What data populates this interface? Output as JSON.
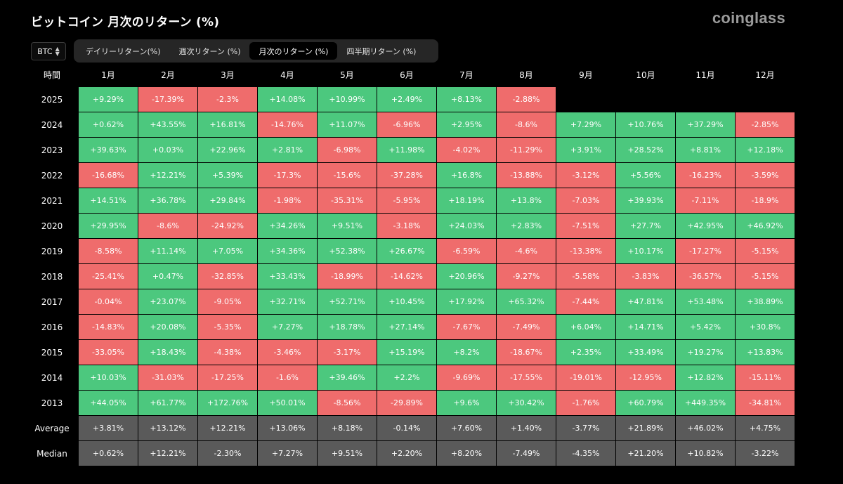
{
  "page_title": "ビットコイン 月次のリターン (%)",
  "brand": "coinglass",
  "asset_select": {
    "value": "BTC"
  },
  "tabs": [
    {
      "label": "デイリーリターン(%)",
      "active": false
    },
    {
      "label": "週次リターン (%)",
      "active": false
    },
    {
      "label": "月次のリターン (%)",
      "active": true
    },
    {
      "label": "四半期リターン (%)",
      "active": false
    }
  ],
  "colors": {
    "positive": "#4cc87e",
    "negative": "#ef6c6c",
    "stat": "#5a5a5a"
  },
  "table": {
    "corner_label": "時間",
    "months": [
      "1月",
      "2月",
      "3月",
      "4月",
      "5月",
      "6月",
      "7月",
      "8月",
      "9月",
      "10月",
      "11月",
      "12月"
    ],
    "rows": [
      {
        "year": "2025",
        "values": [
          "+9.29%",
          "-17.39%",
          "-2.3%",
          "+14.08%",
          "+10.99%",
          "+2.49%",
          "+8.13%",
          "-2.88%",
          "",
          "",
          "",
          ""
        ]
      },
      {
        "year": "2024",
        "values": [
          "+0.62%",
          "+43.55%",
          "+16.81%",
          "-14.76%",
          "+11.07%",
          "-6.96%",
          "+2.95%",
          "-8.6%",
          "+7.29%",
          "+10.76%",
          "+37.29%",
          "-2.85%"
        ]
      },
      {
        "year": "2023",
        "values": [
          "+39.63%",
          "+0.03%",
          "+22.96%",
          "+2.81%",
          "-6.98%",
          "+11.98%",
          "-4.02%",
          "-11.29%",
          "+3.91%",
          "+28.52%",
          "+8.81%",
          "+12.18%"
        ]
      },
      {
        "year": "2022",
        "values": [
          "-16.68%",
          "+12.21%",
          "+5.39%",
          "-17.3%",
          "-15.6%",
          "-37.28%",
          "+16.8%",
          "-13.88%",
          "-3.12%",
          "+5.56%",
          "-16.23%",
          "-3.59%"
        ]
      },
      {
        "year": "2021",
        "values": [
          "+14.51%",
          "+36.78%",
          "+29.84%",
          "-1.98%",
          "-35.31%",
          "-5.95%",
          "+18.19%",
          "+13.8%",
          "-7.03%",
          "+39.93%",
          "-7.11%",
          "-18.9%"
        ]
      },
      {
        "year": "2020",
        "values": [
          "+29.95%",
          "-8.6%",
          "-24.92%",
          "+34.26%",
          "+9.51%",
          "-3.18%",
          "+24.03%",
          "+2.83%",
          "-7.51%",
          "+27.7%",
          "+42.95%",
          "+46.92%"
        ]
      },
      {
        "year": "2019",
        "values": [
          "-8.58%",
          "+11.14%",
          "+7.05%",
          "+34.36%",
          "+52.38%",
          "+26.67%",
          "-6.59%",
          "-4.6%",
          "-13.38%",
          "+10.17%",
          "-17.27%",
          "-5.15%"
        ]
      },
      {
        "year": "2018",
        "values": [
          "-25.41%",
          "+0.47%",
          "-32.85%",
          "+33.43%",
          "-18.99%",
          "-14.62%",
          "+20.96%",
          "-9.27%",
          "-5.58%",
          "-3.83%",
          "-36.57%",
          "-5.15%"
        ]
      },
      {
        "year": "2017",
        "values": [
          "-0.04%",
          "+23.07%",
          "-9.05%",
          "+32.71%",
          "+52.71%",
          "+10.45%",
          "+17.92%",
          "+65.32%",
          "-7.44%",
          "+47.81%",
          "+53.48%",
          "+38.89%"
        ]
      },
      {
        "year": "2016",
        "values": [
          "-14.83%",
          "+20.08%",
          "-5.35%",
          "+7.27%",
          "+18.78%",
          "+27.14%",
          "-7.67%",
          "-7.49%",
          "+6.04%",
          "+14.71%",
          "+5.42%",
          "+30.8%"
        ]
      },
      {
        "year": "2015",
        "values": [
          "-33.05%",
          "+18.43%",
          "-4.38%",
          "-3.46%",
          "-3.17%",
          "+15.19%",
          "+8.2%",
          "-18.67%",
          "+2.35%",
          "+33.49%",
          "+19.27%",
          "+13.83%"
        ]
      },
      {
        "year": "2014",
        "values": [
          "+10.03%",
          "-31.03%",
          "-17.25%",
          "-1.6%",
          "+39.46%",
          "+2.2%",
          "-9.69%",
          "-17.55%",
          "-19.01%",
          "-12.95%",
          "+12.82%",
          "-15.11%"
        ]
      },
      {
        "year": "2013",
        "values": [
          "+44.05%",
          "+61.77%",
          "+172.76%",
          "+50.01%",
          "-8.56%",
          "-29.89%",
          "+9.6%",
          "+30.42%",
          "-1.76%",
          "+60.79%",
          "+449.35%",
          "-34.81%"
        ]
      }
    ],
    "stats": [
      {
        "label": "Average",
        "values": [
          "+3.81%",
          "+13.12%",
          "+12.21%",
          "+13.06%",
          "+8.18%",
          "-0.14%",
          "+7.60%",
          "+1.40%",
          "-3.77%",
          "+21.89%",
          "+46.02%",
          "+4.75%"
        ]
      },
      {
        "label": "Median",
        "values": [
          "+0.62%",
          "+12.21%",
          "-2.30%",
          "+7.27%",
          "+9.51%",
          "+2.20%",
          "+8.20%",
          "-7.49%",
          "-4.35%",
          "+21.20%",
          "+10.82%",
          "-3.22%"
        ]
      }
    ]
  }
}
